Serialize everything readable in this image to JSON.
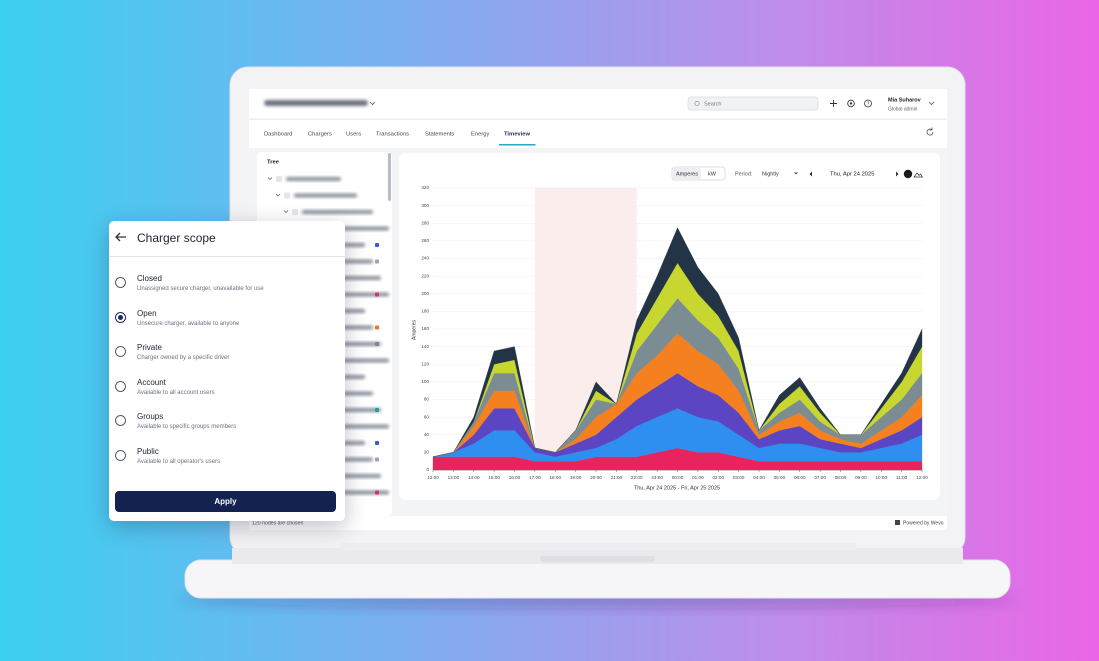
{
  "header": {
    "search_placeholder": "Search",
    "user_name": "Mia Suharov",
    "user_role": "Global admin"
  },
  "tabs": [
    "Dashboard",
    "Chargers",
    "Users",
    "Transactions",
    "Statements",
    "Energy",
    "Timeview"
  ],
  "active_tab": "Timeview",
  "tree": {
    "title": "Tree",
    "footer": "120 nodes are chosen"
  },
  "footer": {
    "powered_by": "Powered by Wevo"
  },
  "controls": {
    "units": [
      "Amperes",
      "kW"
    ],
    "active_unit": "Amperes",
    "period_label": "Period:",
    "period": "Nightly",
    "date": "Thu, Apr 24 2025"
  },
  "chart_data": {
    "type": "area",
    "stacked": true,
    "y_label": "Amperes",
    "x_label": "Thu, Apr 24 2025 - Fri, Apr 25 2025",
    "categories": [
      "12:00",
      "13:00",
      "14:00",
      "15:00",
      "16:00",
      "17:00",
      "18:00",
      "19:00",
      "20:00",
      "21:00",
      "22:00",
      "23:00",
      "00:00",
      "01:00",
      "02:00",
      "03:00",
      "04:00",
      "05:00",
      "06:00",
      "07:00",
      "08:00",
      "09:00",
      "10:00",
      "11:00",
      "12:00"
    ],
    "ylim": [
      0,
      320
    ],
    "yticks": [
      0,
      20,
      40,
      60,
      80,
      100,
      120,
      140,
      160,
      180,
      200,
      220,
      240,
      260,
      280,
      300,
      320
    ],
    "grid": true,
    "highlight": {
      "from": "17:00",
      "to": "22:00"
    },
    "series": [
      {
        "color": "#e8245e",
        "values": [
          15,
          15,
          15,
          15,
          15,
          10,
          10,
          10,
          15,
          15,
          15,
          20,
          25,
          20,
          20,
          15,
          10,
          10,
          10,
          10,
          10,
          10,
          10,
          10,
          10
        ]
      },
      {
        "color": "#2f8ff0",
        "values": [
          0,
          5,
          15,
          30,
          30,
          10,
          5,
          10,
          10,
          20,
          35,
          40,
          45,
          40,
          35,
          25,
          15,
          20,
          20,
          15,
          10,
          10,
          15,
          20,
          30
        ]
      },
      {
        "color": "#5b45c2",
        "values": [
          0,
          0,
          10,
          25,
          25,
          5,
          5,
          10,
          15,
          25,
          30,
          35,
          40,
          35,
          30,
          25,
          10,
          15,
          20,
          10,
          10,
          5,
          10,
          15,
          20
        ]
      },
      {
        "color": "#f4801f",
        "values": [
          0,
          0,
          10,
          20,
          20,
          0,
          0,
          5,
          20,
          15,
          30,
          35,
          45,
          40,
          35,
          25,
          5,
          10,
          15,
          10,
          5,
          5,
          10,
          15,
          25
        ]
      },
      {
        "color": "#7b8c93",
        "values": [
          0,
          0,
          5,
          20,
          20,
          0,
          0,
          10,
          20,
          0,
          25,
          35,
          40,
          35,
          30,
          25,
          5,
          10,
          15,
          10,
          5,
          10,
          15,
          20,
          25
        ]
      },
      {
        "color": "#c8d630",
        "values": [
          0,
          0,
          0,
          10,
          15,
          0,
          0,
          0,
          10,
          0,
          20,
          30,
          40,
          30,
          25,
          20,
          0,
          10,
          15,
          10,
          0,
          0,
          10,
          20,
          30
        ]
      },
      {
        "color": "#233447",
        "values": [
          0,
          0,
          5,
          15,
          15,
          0,
          0,
          0,
          10,
          0,
          15,
          25,
          40,
          30,
          25,
          15,
          0,
          10,
          10,
          5,
          0,
          0,
          5,
          10,
          20
        ]
      }
    ]
  },
  "dialog": {
    "title": "Charger scope",
    "options": [
      {
        "label": "Closed",
        "description": "Unassigned secure charger, unavailable for use"
      },
      {
        "label": "Open",
        "description": "Unsecure charger, available to anyone"
      },
      {
        "label": "Private",
        "description": "Charger owned by a specific driver"
      },
      {
        "label": "Account",
        "description": "Available to all account users"
      },
      {
        "label": "Groups",
        "description": "Available to specific groups members"
      },
      {
        "label": "Public",
        "description": "Available to all operator's users"
      }
    ],
    "selected": "Open",
    "button": "Apply"
  }
}
